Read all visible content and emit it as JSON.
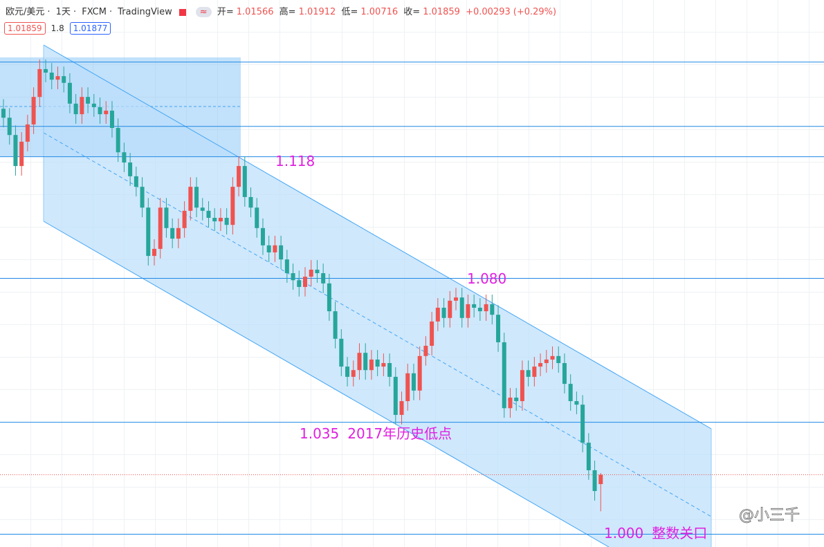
{
  "header": {
    "symbol": "欧元/美元",
    "interval": "1天",
    "source": "FXCM",
    "platform": "TradingView",
    "separator": "·",
    "open_label": "开=",
    "high_label": "高=",
    "low_label": "低=",
    "close_label": "收=",
    "change": {
      "value": 0.00293,
      "label": "+0.00293"
    },
    "change_pct": {
      "value": 0.29,
      "label": "(+0.29%)"
    },
    "bid": 1.01859,
    "spread": 1.8,
    "ask": 1.01877
  },
  "watermark": "@小三千",
  "chart_data": {
    "type": "candlestick",
    "ylim": [
      0.996,
      1.167
    ],
    "up_color": "#ef5350",
    "down_color": "#26a69a",
    "level_color": "#1e88e5",
    "annotation_color": "#e020e0",
    "open": [
      1.133,
      1.1302,
      1.1248,
      1.1151,
      1.1227,
      1.1281,
      1.1367,
      1.1454,
      1.1443,
      1.1421,
      1.1432,
      1.1411,
      1.1346,
      1.1313,
      1.1367,
      1.1346,
      1.1335,
      1.1313,
      1.1324,
      1.127,
      1.1194,
      1.1162,
      1.1119,
      1.1086,
      1.1021,
      1.087,
      1.0892,
      1.1021,
      1.0957,
      1.0924,
      1.0957,
      1.1011,
      1.1086,
      1.1021,
      1.1011,
      1.0989,
      1.0978,
      1.0989,
      1.0967,
      1.1086,
      1.1151,
      1.1054,
      1.1021,
      1.0957,
      1.0903,
      1.0881,
      1.0903,
      1.0859,
      1.0816,
      1.0794,
      1.0773,
      1.0805,
      1.0827,
      1.0816,
      1.0784,
      1.0697,
      1.0611,
      1.0524,
      1.0492,
      1.0513,
      1.0567,
      1.0513,
      1.0546,
      1.0524,
      1.0535,
      1.0492,
      1.0373,
      1.0416,
      1.0503,
      1.0449,
      1.0557,
      1.0589,
      1.0665,
      1.0708,
      1.0676,
      1.073,
      1.074,
      1.0676,
      1.0719,
      1.0708,
      1.0697,
      1.0719,
      1.0686,
      1.06,
      1.0394,
      1.0427,
      1.0416,
      1.0513,
      1.0492,
      1.0524,
      1.0535,
      1.0546,
      1.0557,
      1.0535,
      1.047,
      1.0416,
      1.0405,
      1.0286,
      1.02,
      1.01566
    ],
    "high": [
      1.136,
      1.1332,
      1.1278,
      1.1257,
      1.1311,
      1.1397,
      1.1484,
      1.1484,
      1.1473,
      1.1462,
      1.1462,
      1.1441,
      1.1376,
      1.1397,
      1.1397,
      1.1376,
      1.1365,
      1.1354,
      1.1354,
      1.13,
      1.1224,
      1.1192,
      1.1149,
      1.1116,
      1.1051,
      1.0922,
      1.1051,
      1.1051,
      1.0987,
      1.0987,
      1.1041,
      1.1116,
      1.1116,
      1.1051,
      1.1041,
      1.1019,
      1.1019,
      1.1019,
      1.1116,
      1.1181,
      1.1181,
      1.1084,
      1.1051,
      1.0987,
      1.0933,
      1.0933,
      1.0933,
      1.0889,
      1.0846,
      1.0824,
      1.0835,
      1.0857,
      1.0857,
      1.0846,
      1.0814,
      1.0727,
      1.0641,
      1.0554,
      1.0543,
      1.0597,
      1.0597,
      1.0576,
      1.0576,
      1.0565,
      1.0565,
      1.0522,
      1.0446,
      1.0533,
      1.0533,
      1.0587,
      1.0619,
      1.0695,
      1.0738,
      1.0738,
      1.076,
      1.077,
      1.077,
      1.0749,
      1.0749,
      1.0738,
      1.0749,
      1.0749,
      1.0716,
      1.063,
      1.0457,
      1.0457,
      1.0543,
      1.0543,
      1.0554,
      1.0565,
      1.0576,
      1.0587,
      1.0587,
      1.0565,
      1.05,
      1.0446,
      1.0435,
      1.0316,
      1.023,
      1.01912
    ],
    "low": [
      1.1272,
      1.1218,
      1.1121,
      1.1121,
      1.1197,
      1.1251,
      1.1337,
      1.1413,
      1.1391,
      1.1391,
      1.1381,
      1.1316,
      1.1283,
      1.1283,
      1.1316,
      1.1305,
      1.1283,
      1.1283,
      1.124,
      1.1164,
      1.1132,
      1.1089,
      1.1056,
      1.0991,
      1.084,
      1.084,
      1.0862,
      1.0927,
      1.0894,
      1.0894,
      1.0927,
      1.0981,
      1.0991,
      1.0981,
      1.0959,
      1.0948,
      1.0948,
      1.0937,
      1.0937,
      1.1056,
      1.1024,
      1.0991,
      1.0927,
      1.0873,
      1.0851,
      1.0851,
      1.0829,
      1.0786,
      1.0764,
      1.0743,
      1.0743,
      1.0775,
      1.0786,
      1.0754,
      1.0667,
      1.0581,
      1.0494,
      1.0462,
      1.0462,
      1.0483,
      1.0483,
      1.0483,
      1.0494,
      1.0494,
      1.0462,
      1.0343,
      1.0343,
      1.0386,
      1.0419,
      1.0419,
      1.0527,
      1.0559,
      1.0635,
      1.0646,
      1.0646,
      1.07,
      1.0646,
      1.0646,
      1.0678,
      1.0667,
      1.0667,
      1.0656,
      1.057,
      1.0364,
      1.0364,
      1.0386,
      1.0386,
      1.0462,
      1.0462,
      1.0494,
      1.0505,
      1.0516,
      1.0505,
      1.044,
      1.0386,
      1.0375,
      1.0256,
      1.017,
      1.0105,
      1.00716
    ],
    "close": [
      1.1302,
      1.1248,
      1.1151,
      1.1227,
      1.1281,
      1.1367,
      1.1454,
      1.1443,
      1.1421,
      1.1432,
      1.1411,
      1.1346,
      1.1313,
      1.1367,
      1.1346,
      1.1335,
      1.1313,
      1.1324,
      1.127,
      1.1194,
      1.1162,
      1.1119,
      1.1086,
      1.1021,
      1.087,
      1.0892,
      1.1021,
      1.0957,
      1.0924,
      1.0957,
      1.1011,
      1.1086,
      1.1021,
      1.1011,
      1.0989,
      1.0978,
      1.0989,
      1.0967,
      1.1086,
      1.1151,
      1.1054,
      1.1021,
      1.0957,
      1.0903,
      1.0881,
      1.0903,
      1.0859,
      1.0816,
      1.0794,
      1.0773,
      1.0805,
      1.0827,
      1.0816,
      1.0784,
      1.0697,
      1.0611,
      1.0524,
      1.0492,
      1.0513,
      1.0567,
      1.0513,
      1.0546,
      1.0524,
      1.0535,
      1.0492,
      1.0373,
      1.0416,
      1.0503,
      1.0449,
      1.0557,
      1.0589,
      1.0665,
      1.0708,
      1.0676,
      1.073,
      1.074,
      1.0676,
      1.0719,
      1.0708,
      1.0697,
      1.0719,
      1.0686,
      1.06,
      1.0394,
      1.0427,
      1.0416,
      1.0513,
      1.0492,
      1.0524,
      1.0535,
      1.0546,
      1.0557,
      1.0535,
      1.047,
      1.0416,
      1.0405,
      1.0286,
      1.02,
      1.0135,
      1.01859
    ],
    "levels": [
      1.1476,
      1.1275
    ],
    "annotations": [
      {
        "value": 1.118
      },
      {
        "value": 1.08,
        "label": "1.080"
      },
      {
        "value": 1.035,
        "note": "2017年历史低点"
      },
      {
        "value": 1,
        "label": "1.000",
        "note": "整数关口"
      }
    ]
  }
}
